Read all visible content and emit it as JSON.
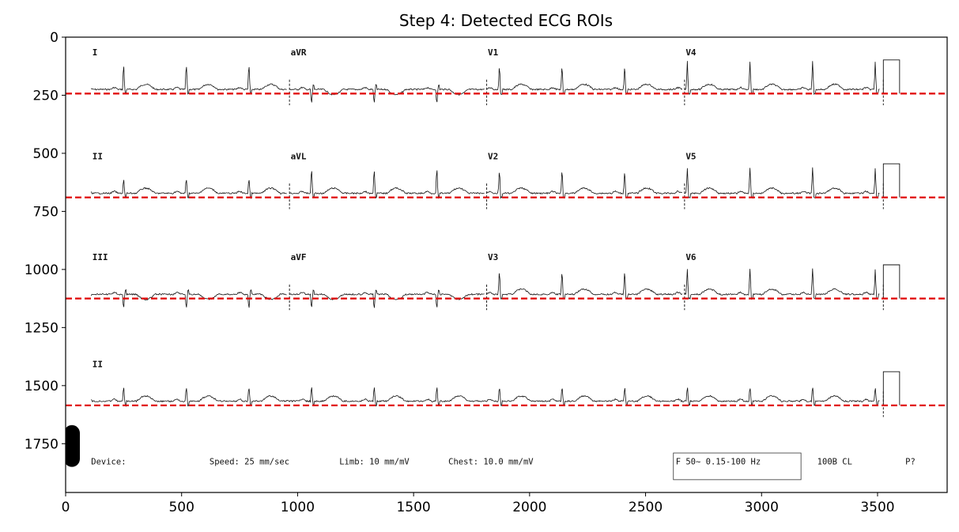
{
  "chart_data": {
    "type": "line",
    "title": "Step 4: Detected ECG ROIs",
    "xlabel": "",
    "ylabel": "",
    "xlim": [
      0,
      3800
    ],
    "ylim": [
      1960,
      0
    ],
    "y_inverted": true,
    "x_ticks": [
      0,
      500,
      1000,
      1500,
      2000,
      2500,
      3000,
      3500
    ],
    "y_ticks": [
      0,
      250,
      500,
      750,
      1000,
      1250,
      1500,
      1750
    ],
    "grid": false,
    "roi_baselines": {
      "style": "dashed",
      "color": "#e00000",
      "y": [
        243,
        690,
        1125,
        1585
      ]
    },
    "ecg_rows": [
      {
        "baseline": 243,
        "leads": [
          {
            "label": "I",
            "x": 110
          },
          {
            "label": "aVR",
            "x": 965
          },
          {
            "label": "V1",
            "x": 1815
          },
          {
            "label": "V4",
            "x": 2668
          }
        ]
      },
      {
        "baseline": 690,
        "leads": [
          {
            "label": "II",
            "x": 110
          },
          {
            "label": "aVL",
            "x": 965
          },
          {
            "label": "V2",
            "x": 1815
          },
          {
            "label": "V5",
            "x": 2668
          }
        ]
      },
      {
        "baseline": 1125,
        "leads": [
          {
            "label": "III",
            "x": 110
          },
          {
            "label": "aVF",
            "x": 965
          },
          {
            "label": "V3",
            "x": 1815
          },
          {
            "label": "V6",
            "x": 2668
          }
        ]
      },
      {
        "baseline": 1585,
        "leads": [
          {
            "label": "II",
            "x": 110
          }
        ]
      }
    ],
    "footer": {
      "device": "Device:",
      "speed": "Speed: 25 mm/sec",
      "limb": "Limb: 10 mm/mV",
      "chest": "Chest: 10.0 mm/mV",
      "filter": "F 50~ 0.15-100 Hz",
      "code": "100B  CL",
      "misc": "P?"
    },
    "colors": {
      "trace": "#111111",
      "roi_line": "#e00000",
      "blob": "#000000"
    }
  }
}
